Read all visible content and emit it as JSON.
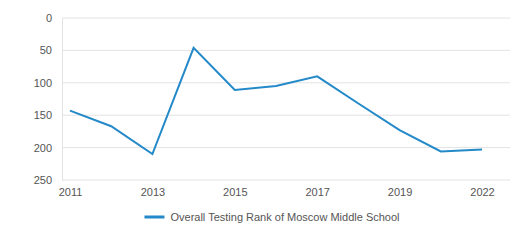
{
  "chart_data": {
    "type": "line",
    "categories": [
      "2011",
      null,
      "2013",
      null,
      "2015",
      null,
      "2017",
      null,
      "2019",
      null,
      "2022"
    ],
    "series": [
      {
        "name": "Overall Testing Rank of Moscow Middle School",
        "color": "#2389c9",
        "values": [
          143,
          167,
          210,
          46,
          111,
          105,
          90,
          132,
          173,
          206,
          203
        ]
      }
    ],
    "ylim": [
      250,
      0
    ],
    "yticks": [
      0,
      50,
      100,
      150,
      200,
      250
    ],
    "grid": true,
    "legend": "bottom"
  }
}
